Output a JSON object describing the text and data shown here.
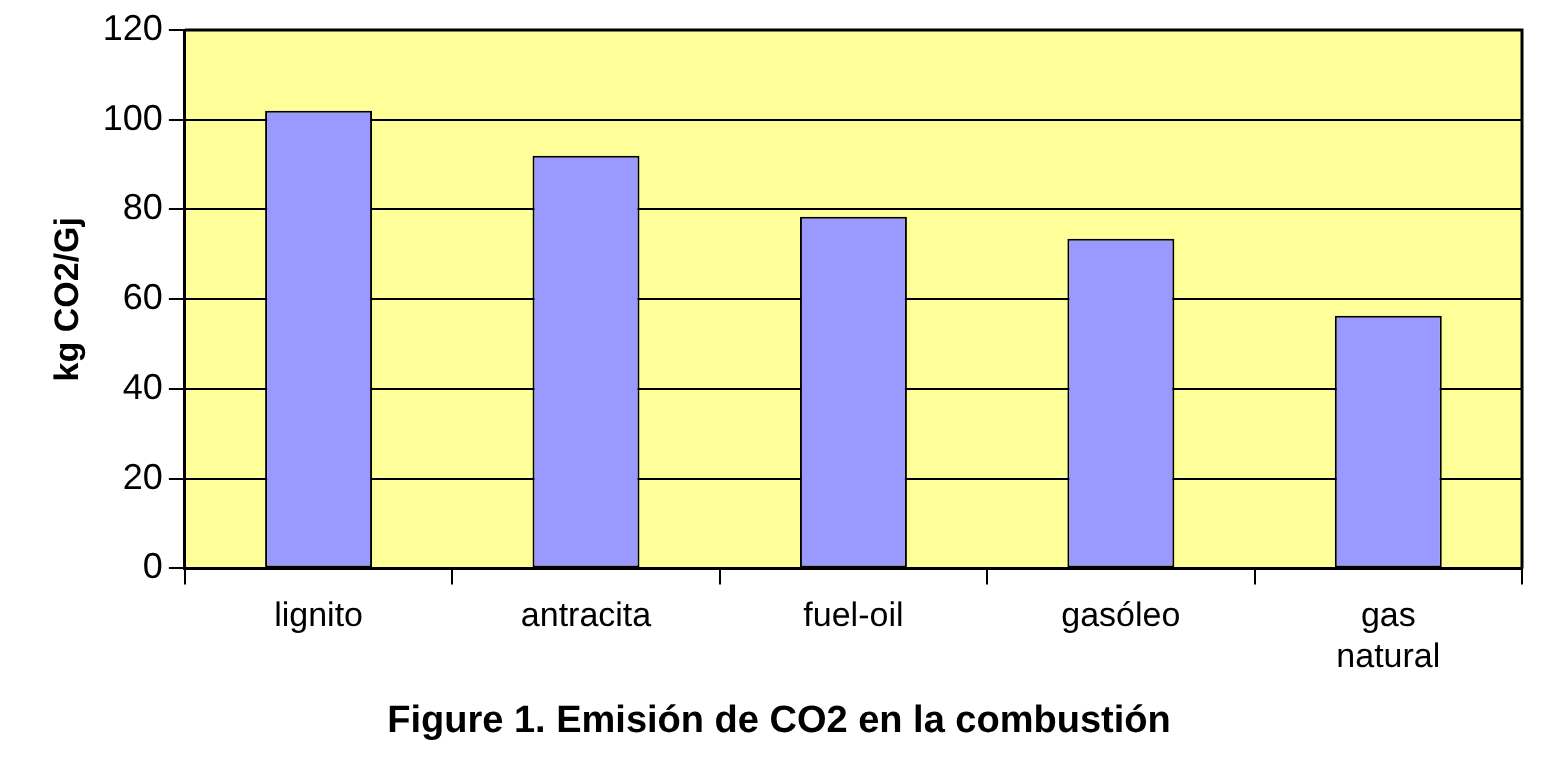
{
  "chart_data": {
    "type": "bar",
    "title": "Figure 1. Emisión de CO2 en la combustión",
    "ylabel": "kg CO2/Gj",
    "categories": [
      "lignito",
      "antracita",
      "fuel-oil",
      "gasóleo",
      "gas natural"
    ],
    "values": [
      102,
      92,
      78.4,
      73.5,
      56.3
    ],
    "color": "#9999ff",
    "ylim": [
      0,
      120
    ],
    "yticks": [
      0,
      20,
      40,
      60,
      80,
      100,
      120
    ],
    "grid": "y",
    "legend": false
  }
}
